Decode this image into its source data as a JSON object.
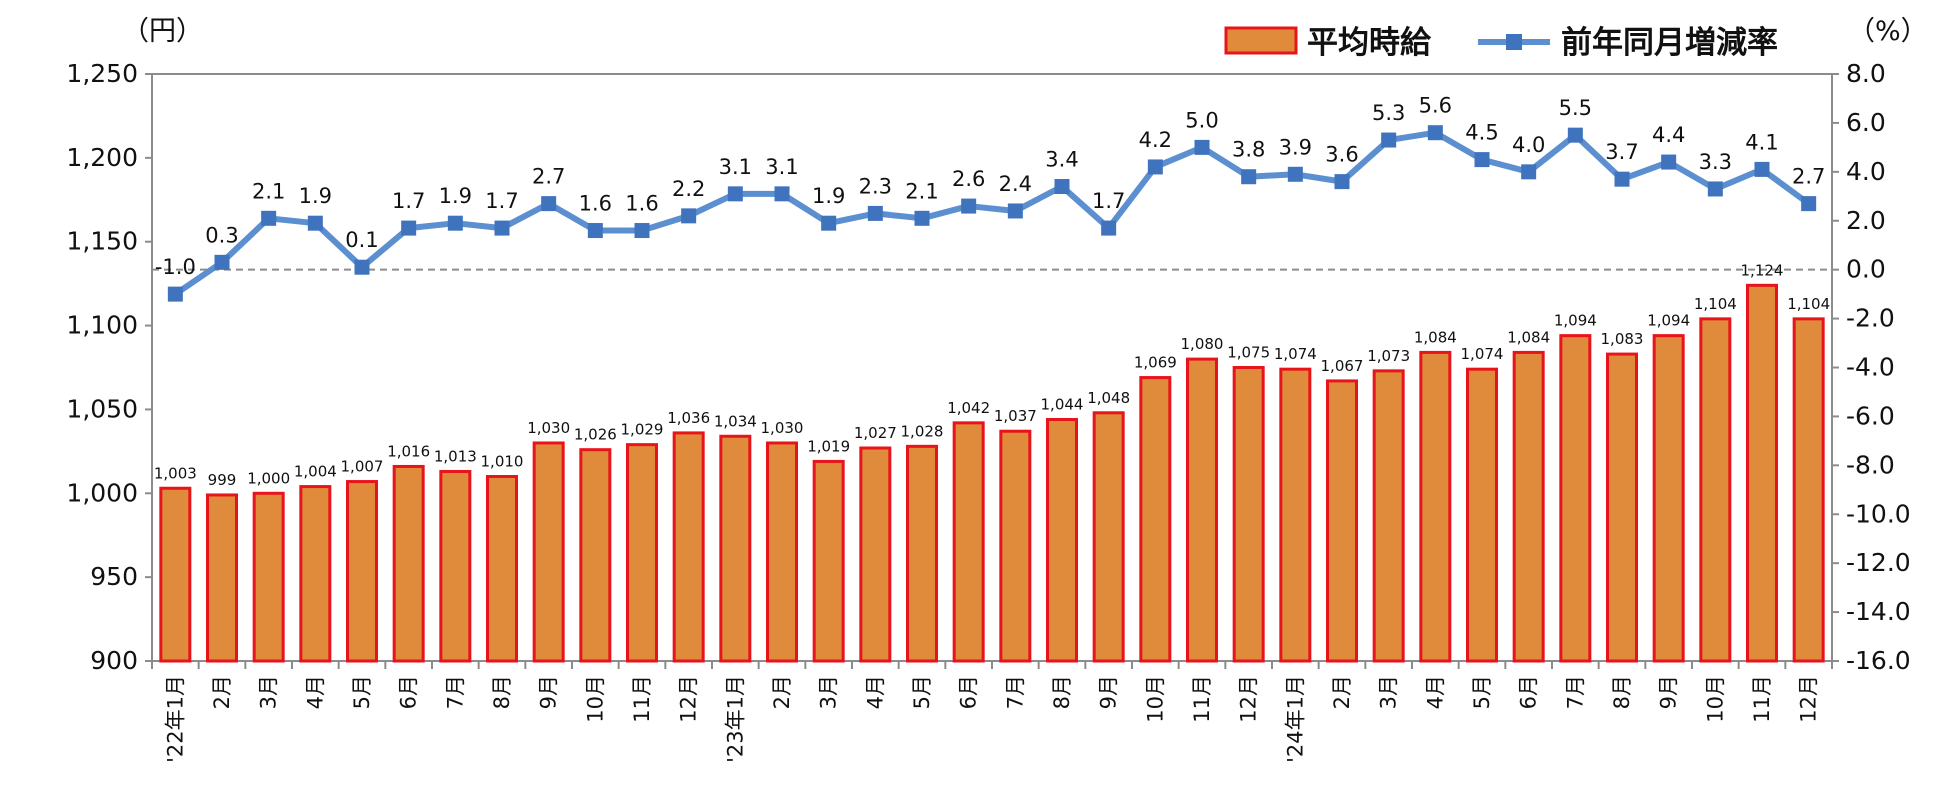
{
  "chart_data": {
    "type": "bar+line",
    "left_axis_unit": "（円）",
    "right_axis_unit": "（%）",
    "left_axis": {
      "min": 900,
      "max": 1250,
      "step": 50,
      "tick_labels": [
        "900",
        "950",
        "1,000",
        "1,050",
        "1,100",
        "1,150",
        "1,200",
        "1,250"
      ]
    },
    "right_axis": {
      "min": -16.0,
      "max": 8.0,
      "step": 2,
      "tick_labels": [
        "-16.0",
        "-14.0",
        "-12.0",
        "-10.0",
        "-8.0",
        "-6.0",
        "-4.0",
        "-2.0",
        "0.0",
        "2.0",
        "4.0",
        "6.0",
        "8.0"
      ]
    },
    "reference_line": {
      "axis": "right",
      "value": 0.0,
      "style": "dashed"
    },
    "categories": [
      "'22年1月",
      "2月",
      "3月",
      "4月",
      "5月",
      "6月",
      "7月",
      "8月",
      "9月",
      "10月",
      "11月",
      "12月",
      "'23年1月",
      "2月",
      "3月",
      "4月",
      "5月",
      "6月",
      "7月",
      "8月",
      "9月",
      "10月",
      "11月",
      "12月",
      "'24年1月",
      "2月",
      "3月",
      "4月",
      "5月",
      "6月",
      "7月",
      "8月",
      "9月",
      "10月",
      "11月",
      "12月"
    ],
    "legend": {
      "position": "top-right"
    },
    "series": [
      {
        "name": "平均時給",
        "type": "bar",
        "axis": "left",
        "fill": "#E08A3C",
        "stroke": "#E8141B",
        "values": [
          1003,
          999,
          1000,
          1004,
          1007,
          1016,
          1013,
          1010,
          1030,
          1026,
          1029,
          1036,
          1034,
          1030,
          1019,
          1027,
          1028,
          1042,
          1037,
          1044,
          1048,
          1069,
          1080,
          1075,
          1074,
          1067,
          1073,
          1084,
          1074,
          1084,
          1094,
          1083,
          1094,
          1104,
          1124,
          1104
        ],
        "labels": [
          "1,003",
          "999",
          "1,000",
          "1,004",
          "1,007",
          "1,016",
          "1,013",
          "1,010",
          "1,030",
          "1,026",
          "1,029",
          "1,036",
          "1,034",
          "1,030",
          "1,019",
          "1,027",
          "1,028",
          "1,042",
          "1,037",
          "1,044",
          "1,048",
          "1,069",
          "1,080",
          "1,075",
          "1,074",
          "1,067",
          "1,073",
          "1,084",
          "1,074",
          "1,084",
          "1,094",
          "1,083",
          "1,094",
          "1,104",
          "1,124",
          "1,104"
        ]
      },
      {
        "name": "前年同月増減率",
        "type": "line",
        "axis": "right",
        "color": "#5B8FD0",
        "marker_color": "#3F73BE",
        "values": [
          -1.0,
          0.3,
          2.1,
          1.9,
          0.1,
          1.7,
          1.9,
          1.7,
          2.7,
          1.6,
          1.6,
          2.2,
          3.1,
          3.1,
          1.9,
          2.3,
          2.1,
          2.6,
          2.4,
          3.4,
          1.7,
          4.2,
          5.0,
          3.8,
          3.9,
          3.6,
          5.3,
          5.6,
          4.5,
          4.0,
          5.5,
          3.7,
          4.4,
          3.3,
          4.1,
          2.7
        ],
        "labels": [
          "-1.0",
          "0.3",
          "2.1",
          "1.9",
          "0.1",
          "1.7",
          "1.9",
          "1.7",
          "2.7",
          "1.6",
          "1.6",
          "2.2",
          "3.1",
          "3.1",
          "1.9",
          "2.3",
          "2.1",
          "2.6",
          "2.4",
          "3.4",
          "1.7",
          "4.2",
          "5.0",
          "3.8",
          "3.9",
          "3.6",
          "5.3",
          "5.6",
          "4.5",
          "4.0",
          "5.5",
          "3.7",
          "4.4",
          "3.3",
          "4.1",
          "2.7"
        ]
      }
    ]
  }
}
